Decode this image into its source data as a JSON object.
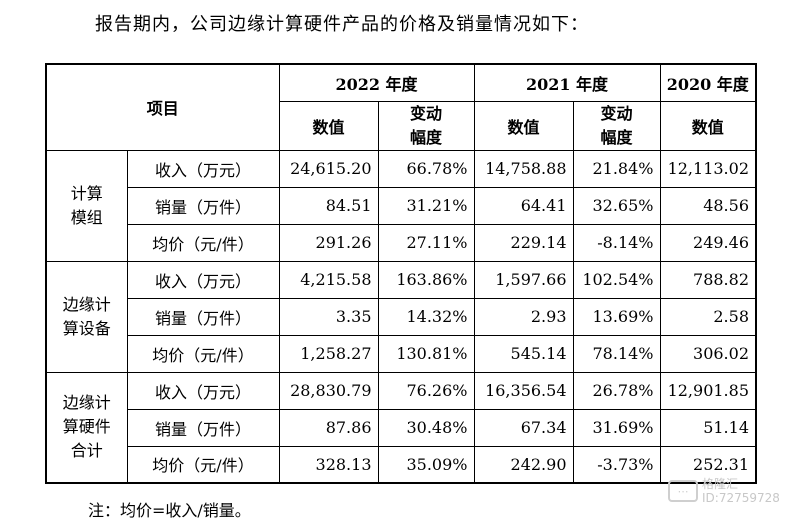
{
  "intro": "报告期内，公司边缘计算硬件产品的价格及销量情况如下：",
  "header": {
    "item": "项目",
    "years": [
      "2022 年度",
      "2021 年度",
      "2020 年度"
    ],
    "value": "数值",
    "change": "变动\n幅度"
  },
  "groups": [
    {
      "name": "计算\n模组",
      "rows": [
        {
          "label": "收入（万元）",
          "v2022": "24,615.20",
          "c2022": "66.78%",
          "v2021": "14,758.88",
          "c2021": "21.84%",
          "v2020": "12,113.02"
        },
        {
          "label": "销量（万件）",
          "v2022": "84.51",
          "c2022": "31.21%",
          "v2021": "64.41",
          "c2021": "32.65%",
          "v2020": "48.56"
        },
        {
          "label": "均价（元/件）",
          "v2022": "291.26",
          "c2022": "27.11%",
          "v2021": "229.14",
          "c2021": "-8.14%",
          "v2020": "249.46"
        }
      ]
    },
    {
      "name": "边缘计\n算设备",
      "rows": [
        {
          "label": "收入（万元）",
          "v2022": "4,215.58",
          "c2022": "163.86%",
          "v2021": "1,597.66",
          "c2021": "102.54%",
          "v2020": "788.82"
        },
        {
          "label": "销量（万件）",
          "v2022": "3.35",
          "c2022": "14.32%",
          "v2021": "2.93",
          "c2021": "13.69%",
          "v2020": "2.58"
        },
        {
          "label": "均价（元/件）",
          "v2022": "1,258.27",
          "c2022": "130.81%",
          "v2021": "545.14",
          "c2021": "78.14%",
          "v2020": "306.02"
        }
      ]
    },
    {
      "name": "边缘计\n算硬件\n合计",
      "rows": [
        {
          "label": "收入（万元）",
          "v2022": "28,830.79",
          "c2022": "76.26%",
          "v2021": "16,356.54",
          "c2021": "26.78%",
          "v2020": "12,901.85"
        },
        {
          "label": "销量（万件）",
          "v2022": "87.86",
          "c2022": "30.48%",
          "v2021": "67.34",
          "c2021": "31.69%",
          "v2020": "51.14"
        },
        {
          "label": "均价（元/件）",
          "v2022": "328.13",
          "c2022": "35.09%",
          "v2021": "242.90",
          "c2021": "-3.73%",
          "v2020": "252.31"
        }
      ]
    }
  ],
  "note": "注：均价=收入/销量。",
  "watermark": {
    "line1": "格隆汇",
    "line2": "ID:72759728"
  }
}
